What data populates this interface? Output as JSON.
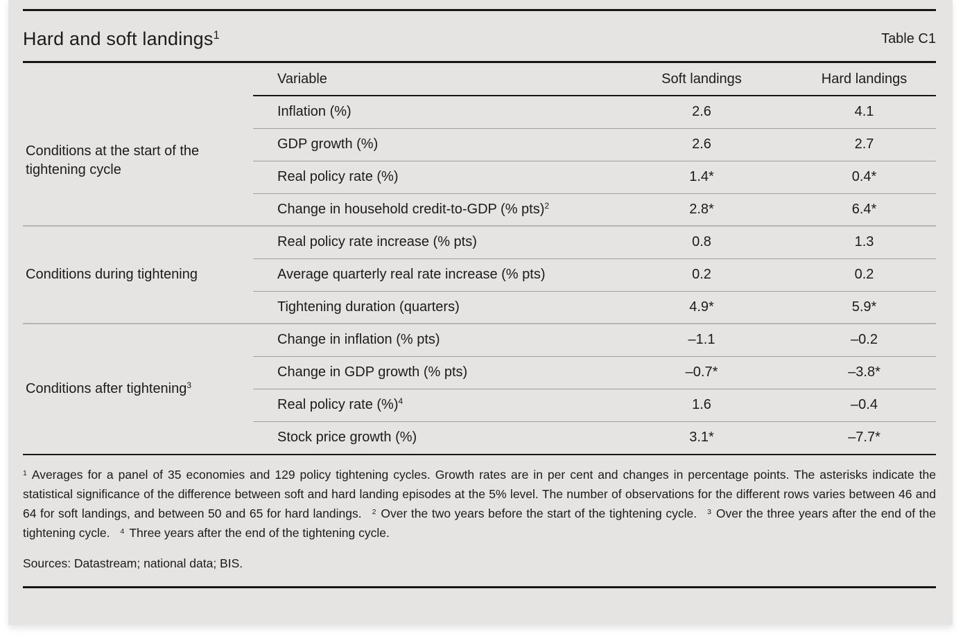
{
  "title": {
    "text": "Hard and soft landings",
    "sup": "1"
  },
  "table_label": "Table C1",
  "table": {
    "columns": {
      "variable": "Variable",
      "soft": "Soft landings",
      "hard": "Hard landings"
    },
    "groups": [
      {
        "label": "Conditions at the start of the tightening cycle",
        "sup": ""
      },
      {
        "label": "Conditions during tightening",
        "sup": ""
      },
      {
        "label": "Conditions after tightening",
        "sup": "3"
      }
    ],
    "rows": [
      {
        "variable": "Inflation (%)",
        "sup": "",
        "soft": "2.6",
        "hard": "4.1"
      },
      {
        "variable": "GDP growth (%)",
        "sup": "",
        "soft": "2.6",
        "hard": "2.7"
      },
      {
        "variable": "Real policy rate (%)",
        "sup": "",
        "soft": "1.4*",
        "hard": "0.4*"
      },
      {
        "variable": "Change in household credit-to-GDP (% pts)",
        "sup": "2",
        "soft": "2.8*",
        "hard": "6.4*"
      },
      {
        "variable": "Real policy rate increase (% pts)",
        "sup": "",
        "soft": "0.8",
        "hard": "1.3"
      },
      {
        "variable": "Average quarterly real rate increase (% pts)",
        "sup": "",
        "soft": "0.2",
        "hard": "0.2"
      },
      {
        "variable": "Tightening duration (quarters)",
        "sup": "",
        "soft": "4.9*",
        "hard": "5.9*"
      },
      {
        "variable": "Change in inflation (% pts)",
        "sup": "",
        "soft": "–1.1",
        "hard": "–0.2"
      },
      {
        "variable": "Change in GDP growth (% pts)",
        "sup": "",
        "soft": "–0.7*",
        "hard": "–3.8*"
      },
      {
        "variable": "Real policy rate (%)",
        "sup": "4",
        "soft": "1.6",
        "hard": "–0.4"
      },
      {
        "variable": "Stock price growth (%)",
        "sup": "",
        "soft": "3.1*",
        "hard": "–7.7*"
      }
    ]
  },
  "footnotes": [
    {
      "marker": "1",
      "text": "Averages for a panel of 35 economies and 129 policy tightening cycles. Growth rates are in per cent and changes in percentage points. The asterisks indicate the statistical significance of the difference between soft and hard landing episodes at the 5% level. The number of observations for the different rows varies between 46 and 64 for soft landings, and between 50 and 65 for hard landings."
    },
    {
      "marker": "2",
      "text": "Over the two years before the start of the tightening cycle."
    },
    {
      "marker": "3",
      "text": "Over the three years after the end of the tightening cycle."
    },
    {
      "marker": "4",
      "text": "Three years after the end of the tightening cycle."
    }
  ],
  "sources": "Sources: Datastream; national data; BIS.",
  "colors": {
    "panel_bg": "#e5e4e2",
    "text": "#1b1b1b",
    "rule_black": "#161616",
    "row_separator": "#9d9d9b",
    "group_separator": "#b5b4b2"
  }
}
